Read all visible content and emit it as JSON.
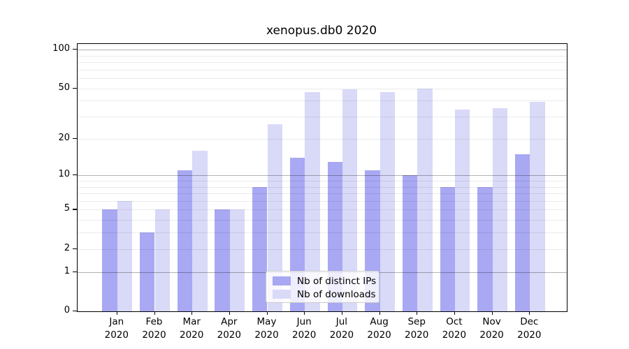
{
  "title": "xenopus.db0 2020",
  "chart_data": {
    "type": "bar",
    "categories": [
      "Jan 2020",
      "Feb 2020",
      "Mar 2020",
      "Apr 2020",
      "May 2020",
      "Jun 2020",
      "Jul 2020",
      "Aug 2020",
      "Sep 2020",
      "Oct 2020",
      "Nov 2020",
      "Dec 2020"
    ],
    "month_labels": [
      "Jan",
      "Feb",
      "Mar",
      "Apr",
      "May",
      "Jun",
      "Jul",
      "Aug",
      "Sep",
      "Oct",
      "Nov",
      "Dec"
    ],
    "year_label": "2020",
    "series": [
      {
        "name": "Nb of distinct IPs",
        "color": "#a8a8f3",
        "values": [
          5,
          3,
          11,
          5,
          8,
          14,
          13,
          11,
          10,
          8,
          8,
          15
        ]
      },
      {
        "name": "Nb of downloads",
        "color": "#d9d9f8",
        "values": [
          6,
          5,
          16,
          5,
          26,
          47,
          49,
          47,
          50,
          34,
          35,
          39
        ]
      }
    ],
    "yscale": "log1p",
    "ylim": [
      0,
      110.5
    ],
    "y_tick_labels": [
      0,
      1,
      2,
      5,
      10,
      20,
      50,
      100
    ],
    "y_major_grid": [
      1,
      10,
      100
    ],
    "y_minor_grid": [
      2,
      3,
      4,
      5,
      6,
      7,
      8,
      9,
      20,
      30,
      40,
      50,
      60,
      70,
      80,
      90
    ],
    "grid": true,
    "legend_position": "lower center"
  },
  "colors": {
    "background": "#ffffff",
    "axis": "#000000",
    "major_grid": "rgba(0,0,0,0.30)",
    "minor_grid": "rgba(0,0,0,0.08)",
    "legend_border": "#cccccc",
    "legend_bg": "rgba(255,255,255,0.8)"
  }
}
